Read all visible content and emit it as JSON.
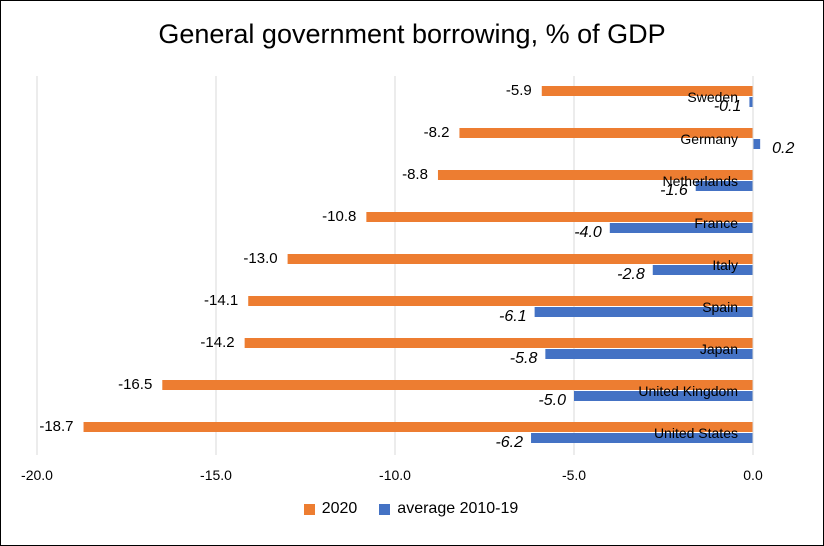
{
  "chart_data": {
    "type": "bar",
    "orientation": "horizontal",
    "title": "General government borrowing, % of GDP",
    "xlabel": "",
    "ylabel": "",
    "xlim": [
      -20,
      0
    ],
    "xticks": [
      "-20.0",
      "-15.0",
      "-10.0",
      "-5.0",
      "0.0"
    ],
    "grid": true,
    "legend_position": "bottom",
    "categories": [
      "Sweden",
      "Germany",
      "Netherlands",
      "France",
      "Italy",
      "Spain",
      "Japan",
      "United Kingdom",
      "United States"
    ],
    "series": [
      {
        "name": "2020",
        "color": "#ED7D31",
        "values": [
          -5.9,
          -8.2,
          -8.8,
          -10.8,
          -13.0,
          -14.1,
          -14.2,
          -16.5,
          -18.7
        ],
        "labels": [
          "-5.9",
          "-8.2",
          "-8.8",
          "-10.8",
          "-13.0",
          "-14.1",
          "-14.2",
          "-16.5",
          "-18.7"
        ]
      },
      {
        "name": "average 2010-19",
        "color": "#4472C4",
        "values": [
          -0.1,
          0.2,
          -1.6,
          -4.0,
          -2.8,
          -6.1,
          -5.8,
          -5.0,
          -6.2
        ],
        "labels": [
          "-0.1",
          "0.2",
          "-1.6",
          "-4.0",
          "-2.8",
          "-6.1",
          "-5.8",
          "-5.0",
          "-6.2"
        ]
      }
    ]
  }
}
